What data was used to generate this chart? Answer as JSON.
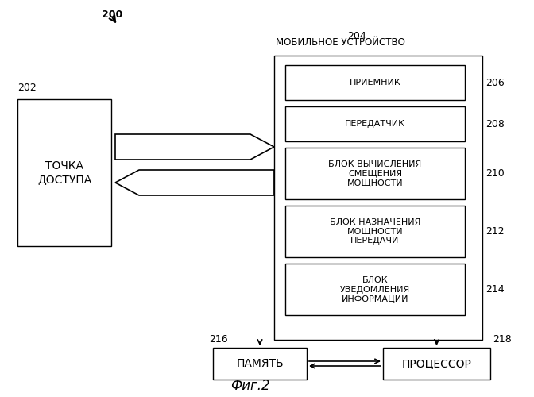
{
  "background_color": "#ffffff",
  "fig_label": "200",
  "access_point_label": "202",
  "access_point_text": "ТОЧКА\nДОСТУПА",
  "mobile_device_label": "204",
  "mobile_device_title": "МОБИЛЬНОЕ УСТРОЙСТВО",
  "boxes": [
    {
      "label": "206",
      "text": "ПРИЕМНИК"
    },
    {
      "label": "208",
      "text": "ПЕРЕДАТЧИК"
    },
    {
      "label": "210",
      "text": "БЛОК ВЫЧИСЛЕНИЯ\nСМЕЩЕНИЯ\nМОЩНОСТИ"
    },
    {
      "label": "212",
      "text": "БЛОК НАЗНАЧЕНИЯ\nМОЩНОСТИ\nПЕРЕДАЧИ"
    },
    {
      "label": "214",
      "text": "БЛОК\nУВЕДОМЛЕНИЯ\nИНФОРМАЦИИ"
    }
  ],
  "memory_label": "216",
  "memory_text": "ПАМЯТЬ",
  "processor_label": "218",
  "processor_text": "ПРОЦЕССОР",
  "caption": "Фиг.2",
  "font_size": 8,
  "font_size_title": 8.5,
  "font_size_caption": 12
}
